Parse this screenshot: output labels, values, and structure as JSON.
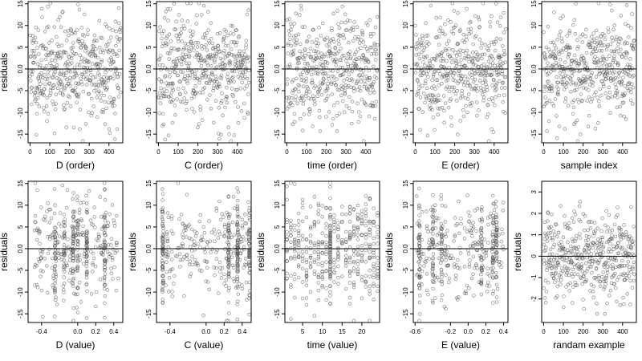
{
  "chart_data": [
    {
      "type": "scatter",
      "xlabel": "D (order)",
      "ylabel": "residuals",
      "xlim": [
        -10,
        470
      ],
      "ylim": [
        -17,
        15.5
      ],
      "xticks": [
        0,
        100,
        200,
        300,
        400
      ],
      "xtick_labels": [
        "0",
        "100",
        "200",
        "300",
        "400"
      ],
      "yticks": [
        -15,
        -10,
        -5,
        0,
        5,
        10,
        15
      ],
      "ytick_labels": [
        "-15",
        "-10",
        "-5",
        "0.0",
        "5",
        "10",
        "15"
      ],
      "ref_line_y": 0,
      "x_dist": {
        "kind": "index",
        "n": 460
      },
      "y_sd": 6.0,
      "seed": 11
    },
    {
      "type": "scatter",
      "xlabel": "C (order)",
      "ylabel": "residuals",
      "xlim": [
        -10,
        470
      ],
      "ylim": [
        -17,
        15.5
      ],
      "xticks": [
        0,
        100,
        200,
        300,
        400
      ],
      "xtick_labels": [
        "0",
        "100",
        "200",
        "300",
        "400"
      ],
      "yticks": [
        -15,
        -10,
        -5,
        0,
        5,
        10,
        15
      ],
      "ytick_labels": [
        "-15",
        "-10",
        "-5",
        "0.0",
        "5",
        "10",
        "15"
      ],
      "ref_line_y": 0,
      "x_dist": {
        "kind": "index",
        "n": 460
      },
      "y_sd": 6.0,
      "seed": 23
    },
    {
      "type": "scatter",
      "xlabel": "time (order)",
      "ylabel": "residuals",
      "xlim": [
        -10,
        470
      ],
      "ylim": [
        -17,
        15.5
      ],
      "xticks": [
        0,
        100,
        200,
        300,
        400
      ],
      "xtick_labels": [
        "0",
        "100",
        "200",
        "300",
        "400"
      ],
      "yticks": [
        -15,
        -10,
        -5,
        0,
        5,
        10,
        15
      ],
      "ytick_labels": [
        "-15",
        "-10",
        "-5",
        "0.0",
        "5",
        "10",
        "15"
      ],
      "ref_line_y": 0,
      "x_dist": {
        "kind": "index",
        "n": 460
      },
      "y_sd": 6.0,
      "seed": 37
    },
    {
      "type": "scatter",
      "xlabel": "E (order)",
      "ylabel": "residuals",
      "xlim": [
        -10,
        470
      ],
      "ylim": [
        -17,
        15.5
      ],
      "xticks": [
        0,
        100,
        200,
        300,
        400
      ],
      "xtick_labels": [
        "0",
        "100",
        "200",
        "300",
        "400"
      ],
      "yticks": [
        -15,
        -10,
        -5,
        0,
        5,
        10,
        15
      ],
      "ytick_labels": [
        "-15",
        "-10",
        "-5",
        "0.0",
        "5",
        "10",
        "15"
      ],
      "ref_line_y": 0,
      "x_dist": {
        "kind": "index",
        "n": 460
      },
      "y_sd": 6.0,
      "seed": 41
    },
    {
      "type": "scatter",
      "xlabel": "sample index",
      "ylabel": "residuals",
      "xlim": [
        -10,
        470
      ],
      "ylim": [
        -17,
        15.5
      ],
      "xticks": [
        0,
        100,
        200,
        300,
        400
      ],
      "xtick_labels": [
        "0",
        "100",
        "200",
        "300",
        "400"
      ],
      "yticks": [
        -15,
        -10,
        -5,
        0,
        5,
        10,
        15
      ],
      "ytick_labels": [
        "-15",
        "-10",
        "-5",
        "0.0",
        "5",
        "10",
        "15"
      ],
      "ref_line_y": 0,
      "x_dist": {
        "kind": "index",
        "n": 460
      },
      "y_sd": 6.0,
      "seed": 53
    },
    {
      "type": "scatter",
      "xlabel": "D (value)",
      "ylabel": "residuals",
      "xlim": [
        -0.55,
        0.5
      ],
      "ylim": [
        -17,
        15.5
      ],
      "xticks": [
        -0.4,
        0.0,
        0.2,
        0.4
      ],
      "xtick_labels": [
        "-0.4",
        "0.0",
        "0.2",
        "0.4"
      ],
      "yticks": [
        -15,
        -10,
        -5,
        0,
        5,
        10,
        15
      ],
      "ytick_labels": [
        "-15",
        "-10",
        "-5",
        "0.0",
        "5",
        "10",
        "15"
      ],
      "ref_line_y": 0,
      "x_dist": {
        "kind": "clustered",
        "n": 460,
        "min": -0.5,
        "max": 0.45,
        "clusters": [
          -0.25,
          -0.15,
          -0.05,
          0.0,
          0.1,
          0.3
        ]
      },
      "y_sd": 6.0,
      "seed": 61
    },
    {
      "type": "scatter",
      "xlabel": "C (value)",
      "ylabel": "residuals",
      "xlim": [
        -0.55,
        0.5
      ],
      "ylim": [
        -17,
        15.5
      ],
      "xticks": [
        -0.4,
        0.0,
        0.2,
        0.4
      ],
      "xtick_labels": [
        "-0.4",
        "0.0",
        "0.2",
        "0.4"
      ],
      "yticks": [
        -15,
        -10,
        -5,
        0,
        5,
        10,
        15
      ],
      "ytick_labels": [
        "-15",
        "-10",
        "-5",
        "0.0",
        "5",
        "10",
        "15"
      ],
      "ref_line_y": 0,
      "x_dist": {
        "kind": "clustered",
        "n": 460,
        "min": -0.5,
        "max": 0.48,
        "clusters": [
          -0.48,
          0.25,
          0.35,
          0.48
        ]
      },
      "y_sd": 6.0,
      "seed": 71
    },
    {
      "type": "scatter",
      "xlabel": "time (value)",
      "ylabel": "residuals",
      "xlim": [
        0.5,
        24.5
      ],
      "ylim": [
        -17,
        15.5
      ],
      "xticks": [
        5,
        10,
        15,
        20
      ],
      "xtick_labels": [
        "5",
        "10",
        "15",
        "20"
      ],
      "yticks": [
        -15,
        -10,
        -5,
        0,
        5,
        10,
        15
      ],
      "ytick_labels": [
        "-15",
        "-10",
        "-5",
        "0.0",
        "5",
        "10",
        "15"
      ],
      "ref_line_y": 0,
      "x_dist": {
        "kind": "integer",
        "n": 460,
        "min": 1,
        "max": 24,
        "heavy": [
          12
        ]
      },
      "y_sd": 6.0,
      "seed": 83
    },
    {
      "type": "scatter",
      "xlabel": "E (value)",
      "ylabel": "residuals",
      "xlim": [
        -0.62,
        0.45
      ],
      "ylim": [
        -17,
        15.5
      ],
      "xticks": [
        -0.6,
        -0.2,
        0.0,
        0.2,
        0.4
      ],
      "xtick_labels": [
        "-0.6",
        "-0.2",
        "0.0",
        "0.2",
        "0.4"
      ],
      "yticks": [
        -15,
        -10,
        -5,
        0,
        5,
        10,
        15
      ],
      "ytick_labels": [
        "-15",
        "-10",
        "-5",
        "0.0",
        "5",
        "10",
        "15"
      ],
      "ref_line_y": 0,
      "x_dist": {
        "kind": "clustered",
        "n": 460,
        "min": -0.6,
        "max": 0.4,
        "clusters": [
          -0.55,
          -0.4,
          -0.3,
          0.15,
          0.28,
          0.32
        ]
      },
      "y_sd": 6.0,
      "seed": 97
    },
    {
      "type": "scatter",
      "xlabel": "randam example",
      "ylabel": "residuals",
      "xlim": [
        -10,
        470
      ],
      "ylim": [
        -3.1,
        3.5
      ],
      "xticks": [
        0,
        100,
        200,
        300,
        400
      ],
      "xtick_labels": [
        "0",
        "100",
        "200",
        "300",
        "400"
      ],
      "yticks": [
        -2,
        -1,
        0,
        1,
        2,
        3
      ],
      "ytick_labels": [
        "-2",
        "-1",
        "0",
        "1",
        "2",
        "3"
      ],
      "ref_line_y": 0,
      "x_dist": {
        "kind": "index",
        "n": 460
      },
      "y_sd": 1.0,
      "seed": 101
    }
  ]
}
